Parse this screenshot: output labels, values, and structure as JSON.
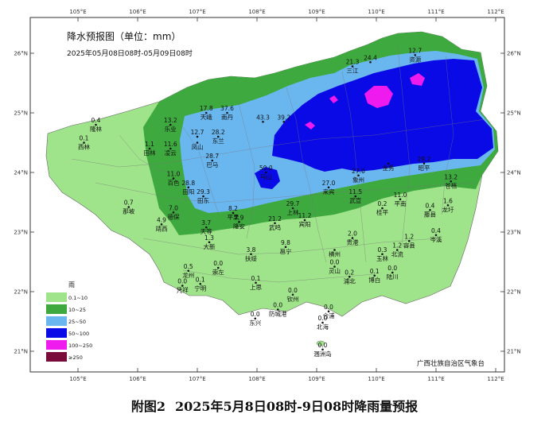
{
  "map": {
    "title": "降水预报图（单位：mm）",
    "subtitle": "2025年05月08日08时-05月09日08时",
    "agency": "广西壮族自治区气象台",
    "lon_ticks": [
      "105°E",
      "106°E",
      "107°E",
      "108°E",
      "109°E",
      "110°E",
      "111°E",
      "112°E"
    ],
    "lat_ticks": [
      "26°N",
      "25°N",
      "24°N",
      "23°N",
      "22°N",
      "21°N"
    ],
    "legend_title": "雨",
    "legend": [
      {
        "label": "0.1~10",
        "color": "#9fe38a"
      },
      {
        "label": "10~25",
        "color": "#3ea93e"
      },
      {
        "label": "25~50",
        "color": "#6ab7f0"
      },
      {
        "label": "50~100",
        "color": "#0a0ae6"
      },
      {
        "label": "100~250",
        "color": "#ee1aee"
      },
      {
        "label": "≥250",
        "color": "#7a0a3a"
      }
    ],
    "stations": [
      {
        "name": "资源",
        "value": "12.7",
        "lon": 110.65,
        "lat": 25.97
      },
      {
        "name": "三江",
        "value": "21.3",
        "lon": 109.6,
        "lat": 25.78
      },
      {
        "name": "",
        "value": "24.4",
        "lon": 109.9,
        "lat": 25.85
      },
      {
        "name": "天峨",
        "value": "17.8",
        "lon": 107.15,
        "lat": 25.0
      },
      {
        "name": "南丹",
        "value": "37.6",
        "lon": 107.5,
        "lat": 25.0
      },
      {
        "name": "",
        "value": "43.3",
        "lon": 108.1,
        "lat": 24.85
      },
      {
        "name": "",
        "value": "39.2",
        "lon": 108.45,
        "lat": 24.85
      },
      {
        "name": "乐业",
        "value": "13.2",
        "lon": 106.55,
        "lat": 24.8
      },
      {
        "name": "",
        "value": "12.7",
        "lon": 107.0,
        "lat": 24.6
      },
      {
        "name": "凤山",
        "value": "",
        "lon": 107.0,
        "lat": 24.5
      },
      {
        "name": "东兰",
        "value": "28.2",
        "lon": 107.35,
        "lat": 24.6
      },
      {
        "name": "隆林",
        "value": "0.4",
        "lon": 105.3,
        "lat": 24.8
      },
      {
        "name": "西林",
        "value": "0.1",
        "lon": 105.1,
        "lat": 24.5
      },
      {
        "name": "田林",
        "value": "1.1",
        "lon": 106.2,
        "lat": 24.4
      },
      {
        "name": "凌云",
        "value": "11.6",
        "lon": 106.55,
        "lat": 24.4
      },
      {
        "name": "巴马",
        "value": "28.7",
        "lon": 107.25,
        "lat": 24.2
      },
      {
        "name": "马山",
        "value": "50.0",
        "lon": 108.15,
        "lat": 24.0
      },
      {
        "name": "百色",
        "value": "11.0",
        "lon": 106.6,
        "lat": 23.9
      },
      {
        "name": "田阳",
        "value": "28.8",
        "lon": 106.85,
        "lat": 23.75
      },
      {
        "name": "田东",
        "value": "29.3",
        "lon": 107.1,
        "lat": 23.6
      },
      {
        "name": "来宾",
        "value": "27.0",
        "lon": 109.2,
        "lat": 23.75
      },
      {
        "name": "象州",
        "value": "27.0",
        "lon": 109.7,
        "lat": 23.95
      },
      {
        "name": "金秀",
        "value": "",
        "lon": 110.2,
        "lat": 24.15
      },
      {
        "name": "昭平",
        "value": "29.2",
        "lon": 110.8,
        "lat": 24.15
      },
      {
        "name": "苍梧",
        "value": "13.2",
        "lon": 111.25,
        "lat": 23.85
      },
      {
        "name": "那坡",
        "value": "0.7",
        "lon": 105.85,
        "lat": 23.42
      },
      {
        "name": "靖西",
        "value": "4.9",
        "lon": 106.4,
        "lat": 23.13
      },
      {
        "name": "德保",
        "value": "7.0",
        "lon": 106.6,
        "lat": 23.33
      },
      {
        "name": "天等",
        "value": "3.7",
        "lon": 107.15,
        "lat": 23.08
      },
      {
        "name": "平果",
        "value": "8.2",
        "lon": 107.6,
        "lat": 23.32
      },
      {
        "name": "隆安",
        "value": "7.9",
        "lon": 107.7,
        "lat": 23.17
      },
      {
        "name": "武鸣",
        "value": "21.2",
        "lon": 108.3,
        "lat": 23.15
      },
      {
        "name": "上林",
        "value": "29.7",
        "lon": 108.6,
        "lat": 23.4
      },
      {
        "name": "宾阳",
        "value": "11.2",
        "lon": 108.8,
        "lat": 23.2
      },
      {
        "name": "武宣",
        "value": "11.5",
        "lon": 109.65,
        "lat": 23.6
      },
      {
        "name": "平南",
        "value": "11.0",
        "lon": 110.4,
        "lat": 23.55
      },
      {
        "name": "藤县",
        "value": "0.4",
        "lon": 110.9,
        "lat": 23.37
      },
      {
        "name": "桂平",
        "value": "0.2",
        "lon": 110.1,
        "lat": 23.4
      },
      {
        "name": "龙圩",
        "value": "1.6",
        "lon": 111.2,
        "lat": 23.45
      },
      {
        "name": "岑溪",
        "value": "0.4",
        "lon": 111.0,
        "lat": 22.95
      },
      {
        "name": "大新",
        "value": "1.3",
        "lon": 107.2,
        "lat": 22.83
      },
      {
        "name": "扶绥",
        "value": "3.8",
        "lon": 107.9,
        "lat": 22.63
      },
      {
        "name": "邕宁",
        "value": "9.8",
        "lon": 108.48,
        "lat": 22.75
      },
      {
        "name": "贵港",
        "value": "2.0",
        "lon": 109.6,
        "lat": 22.9
      },
      {
        "name": "横州",
        "value": "",
        "lon": 109.3,
        "lat": 22.7
      },
      {
        "name": "玉林",
        "value": "0.3",
        "lon": 110.1,
        "lat": 22.63
      },
      {
        "name": "北流",
        "value": "1.2",
        "lon": 110.35,
        "lat": 22.7
      },
      {
        "name": "容县",
        "value": "1.2",
        "lon": 110.55,
        "lat": 22.85
      },
      {
        "name": "龙州",
        "value": "0.5",
        "lon": 106.85,
        "lat": 22.35
      },
      {
        "name": "崇左",
        "value": "0.0",
        "lon": 107.35,
        "lat": 22.4
      },
      {
        "name": "宁明",
        "value": "0.1",
        "lon": 107.05,
        "lat": 22.13
      },
      {
        "name": "凭祥",
        "value": "0.0",
        "lon": 106.75,
        "lat": 22.1
      },
      {
        "name": "上思",
        "value": "0.1",
        "lon": 107.98,
        "lat": 22.15
      },
      {
        "name": "灵山",
        "value": "0.0",
        "lon": 109.3,
        "lat": 22.42
      },
      {
        "name": "浦北",
        "value": "0.2",
        "lon": 109.55,
        "lat": 22.25
      },
      {
        "name": "博白",
        "value": "0.1",
        "lon": 109.97,
        "lat": 22.27
      },
      {
        "name": "陆川",
        "value": "0.0",
        "lon": 110.27,
        "lat": 22.32
      },
      {
        "name": "钦州",
        "value": "0.0",
        "lon": 108.6,
        "lat": 21.95
      },
      {
        "name": "防城港",
        "value": "0.0",
        "lon": 108.35,
        "lat": 21.7
      },
      {
        "name": "合浦",
        "value": "0.0",
        "lon": 109.2,
        "lat": 21.67
      },
      {
        "name": "东兴",
        "value": "0.0",
        "lon": 107.97,
        "lat": 21.55
      },
      {
        "name": "北海",
        "value": "0.0",
        "lon": 109.1,
        "lat": 21.48
      },
      {
        "name": "涠洲岛",
        "value": "0.0",
        "lon": 109.1,
        "lat": 21.03
      }
    ]
  },
  "caption": {
    "prefix": "附图2",
    "text": "2025年5月8日08时-9日08时降雨量预报"
  }
}
